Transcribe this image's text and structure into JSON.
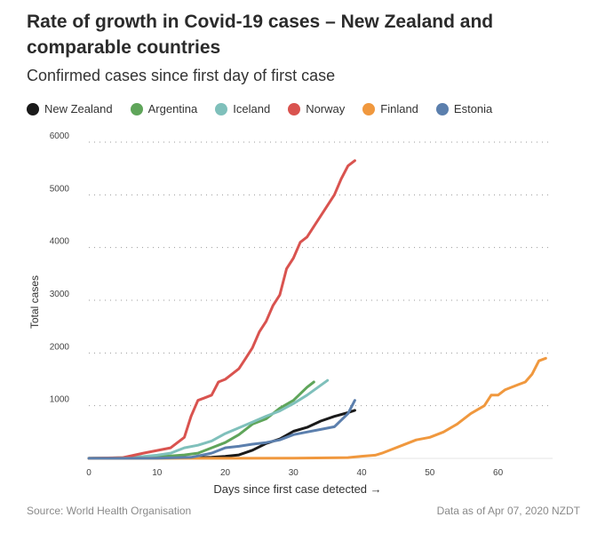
{
  "chart_data": {
    "type": "line",
    "title": "Rate of growth in Covid-19 cases – New Zealand and comparable countries",
    "subtitle": "Confirmed cases since first day of first case",
    "xlabel": "Days since first case detected →",
    "ylabel": "Total cases",
    "xlim": [
      0,
      68
    ],
    "ylim": [
      0,
      6000
    ],
    "x_ticks": [
      0,
      10,
      20,
      30,
      40,
      50,
      60
    ],
    "y_ticks": [
      1000,
      2000,
      3000,
      4000,
      5000,
      6000
    ],
    "grid": "horizontal dotted",
    "legend_position": "top",
    "series": [
      {
        "name": "New Zealand",
        "color": "#1a1a1a",
        "x": [
          0,
          5,
          10,
          15,
          18,
          20,
          22,
          24,
          26,
          28,
          30,
          32,
          34,
          36,
          38,
          39
        ],
        "y": [
          0,
          1,
          5,
          10,
          20,
          39,
          66,
          155,
          283,
          368,
          514,
          589,
          708,
          797,
          868,
          911
        ]
      },
      {
        "name": "Argentina",
        "color": "#5fa55a",
        "x": [
          0,
          5,
          8,
          10,
          12,
          14,
          16,
          18,
          20,
          22,
          24,
          26,
          28,
          30,
          32,
          33
        ],
        "y": [
          1,
          12,
          20,
          30,
          45,
          65,
          100,
          200,
          300,
          450,
          650,
          750,
          950,
          1100,
          1350,
          1450
        ]
      },
      {
        "name": "Iceland",
        "color": "#7fc0bb",
        "x": [
          0,
          5,
          8,
          10,
          12,
          14,
          16,
          18,
          20,
          22,
          24,
          26,
          28,
          30,
          32,
          35
        ],
        "y": [
          1,
          10,
          35,
          60,
          100,
          200,
          250,
          330,
          470,
          580,
          690,
          800,
          900,
          1040,
          1200,
          1480
        ]
      },
      {
        "name": "Norway",
        "color": "#d9534f",
        "x": [
          0,
          5,
          8,
          10,
          12,
          13,
          14,
          15,
          16,
          17,
          18,
          19,
          20,
          21,
          22,
          23,
          24,
          25,
          26,
          27,
          28,
          29,
          30,
          31,
          32,
          33,
          34,
          35,
          36,
          37,
          38,
          39
        ],
        "y": [
          1,
          15,
          100,
          150,
          200,
          300,
          400,
          800,
          1100,
          1150,
          1200,
          1450,
          1500,
          1600,
          1700,
          1900,
          2100,
          2400,
          2600,
          2900,
          3100,
          3600,
          3800,
          4100,
          4200,
          4400,
          4600,
          4800,
          5000,
          5300,
          5550,
          5650
        ]
      },
      {
        "name": "Finland",
        "color": "#f0983e",
        "x": [
          0,
          10,
          20,
          30,
          38,
          40,
          42,
          43,
          44,
          46,
          48,
          50,
          52,
          54,
          56,
          58,
          59,
          60,
          61,
          62,
          63,
          64,
          65,
          66,
          67
        ],
        "y": [
          1,
          1,
          2,
          5,
          15,
          40,
          60,
          100,
          150,
          250,
          350,
          400,
          500,
          650,
          850,
          1000,
          1200,
          1200,
          1300,
          1350,
          1400,
          1450,
          1600,
          1850,
          1900
        ]
      },
      {
        "name": "Estonia",
        "color": "#5b7fad",
        "x": [
          0,
          5,
          10,
          15,
          18,
          20,
          22,
          24,
          26,
          28,
          30,
          32,
          34,
          36,
          38,
          39
        ],
        "y": [
          1,
          2,
          3,
          20,
          100,
          200,
          230,
          270,
          300,
          350,
          450,
          500,
          550,
          600,
          850,
          1100
        ]
      }
    ]
  },
  "footer": {
    "source": "Source: World Health Organisation",
    "date": "Data as of Apr 07, 2020 NZDT"
  }
}
